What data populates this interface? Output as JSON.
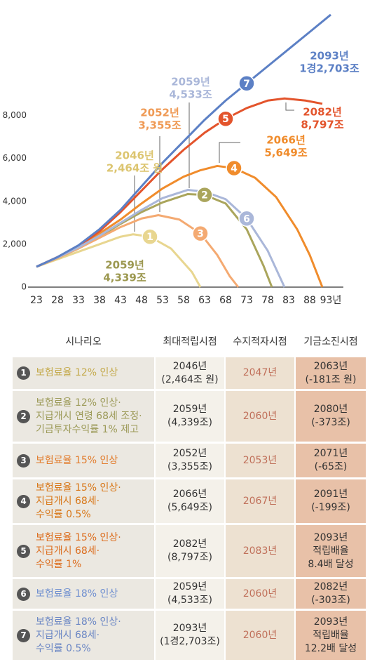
{
  "chart_data": {
    "type": "line",
    "xlim": [
      2023,
      2093
    ],
    "ylim": [
      0,
      12800
    ],
    "xticks": [
      {
        "value": 2023,
        "label": "23"
      },
      {
        "value": 2028,
        "label": "28"
      },
      {
        "value": 2033,
        "label": "33"
      },
      {
        "value": 2038,
        "label": "38"
      },
      {
        "value": 2043,
        "label": "43"
      },
      {
        "value": 2048,
        "label": "48"
      },
      {
        "value": 2053,
        "label": "53"
      },
      {
        "value": 2058,
        "label": "58"
      },
      {
        "value": 2063,
        "label": "63"
      },
      {
        "value": 2068,
        "label": "68"
      },
      {
        "value": 2073,
        "label": "73"
      },
      {
        "value": 2078,
        "label": "78"
      },
      {
        "value": 2083,
        "label": "83"
      },
      {
        "value": 2088,
        "label": "88"
      },
      {
        "value": 2093,
        "label": "93년"
      }
    ],
    "yticks": [
      0,
      {
        "value": 2000,
        "label": "2,000"
      },
      {
        "value": 4000,
        "label": "4,000"
      },
      {
        "value": 6000,
        "label": "6,000"
      },
      {
        "value": 8000,
        "label": "8,000"
      }
    ],
    "grid": false,
    "series": [
      {
        "name": "1",
        "color": "#e8d690",
        "x": [
          2023,
          2028,
          2033,
          2038,
          2043,
          2046,
          2050,
          2055,
          2060,
          2062
        ],
        "values": [
          950,
          1300,
          1650,
          2000,
          2350,
          2464,
          2350,
          1800,
          700,
          0
        ]
      },
      {
        "name": "2",
        "color": "#aaa55c",
        "x": [
          2023,
          2028,
          2033,
          2038,
          2043,
          2048,
          2053,
          2059,
          2063,
          2068,
          2073,
          2077,
          2079
        ],
        "values": [
          950,
          1350,
          1800,
          2350,
          2950,
          3500,
          3950,
          4339,
          4300,
          3900,
          2700,
          1000,
          0
        ]
      },
      {
        "name": "3",
        "color": "#f4aa72",
        "x": [
          2023,
          2028,
          2033,
          2038,
          2043,
          2048,
          2052,
          2057,
          2062,
          2066,
          2069,
          2071
        ],
        "values": [
          950,
          1350,
          1800,
          2300,
          2800,
          3200,
          3355,
          3150,
          2500,
          1500,
          500,
          0
        ]
      },
      {
        "name": "4",
        "color": "#f08c2c",
        "x": [
          2023,
          2028,
          2033,
          2038,
          2043,
          2048,
          2053,
          2058,
          2062,
          2066,
          2070,
          2075,
          2080,
          2085,
          2088,
          2091
        ],
        "values": [
          950,
          1380,
          1900,
          2500,
          3150,
          3900,
          4600,
          5150,
          5450,
          5649,
          5550,
          5100,
          4200,
          2700,
          1500,
          0
        ]
      },
      {
        "name": "5",
        "color": "#e3542c",
        "x": [
          2023,
          2028,
          2033,
          2038,
          2043,
          2048,
          2053,
          2058,
          2063,
          2068,
          2073,
          2078,
          2082,
          2087,
          2091
        ],
        "values": [
          950,
          1400,
          1900,
          2600,
          3500,
          4500,
          5500,
          6400,
          7200,
          7850,
          8350,
          8700,
          8797,
          8700,
          8550
        ]
      },
      {
        "name": "6",
        "color": "#aab7d9",
        "x": [
          2023,
          2028,
          2033,
          2038,
          2043,
          2048,
          2053,
          2059,
          2063,
          2068,
          2073,
          2078,
          2082
        ],
        "values": [
          950,
          1380,
          1850,
          2400,
          3000,
          3600,
          4150,
          4533,
          4450,
          4100,
          3200,
          1700,
          0
        ]
      },
      {
        "name": "7",
        "color": "#5c80c5",
        "x": [
          2023,
          2028,
          2033,
          2038,
          2043,
          2048,
          2053,
          2058,
          2063,
          2068,
          2073,
          2078,
          2083,
          2088,
          2093
        ],
        "values": [
          950,
          1400,
          1950,
          2700,
          3600,
          4700,
          5800,
          6800,
          7800,
          8700,
          9500,
          10300,
          11100,
          11900,
          12703
        ]
      }
    ],
    "annotations": [
      {
        "lines": [
          "2093년",
          "1경2,703조"
        ],
        "color": "#5c80c5"
      },
      {
        "lines": [
          "2059년",
          "4,533조"
        ],
        "color": "#aab7d9"
      },
      {
        "lines": [
          "2052년",
          "3,355조"
        ],
        "color": "#ef9a55"
      },
      {
        "lines": [
          "2082년",
          "8,797조"
        ],
        "color": "#e3542c"
      },
      {
        "lines": [
          "2046년",
          "2,464조 원"
        ],
        "color": "#dcc570"
      },
      {
        "lines": [
          "2066년",
          "5,649조"
        ],
        "color": "#f08c2c"
      },
      {
        "lines": [
          "2059년",
          "4,339조"
        ],
        "color": "#9c9850"
      }
    ]
  },
  "table": {
    "header": [
      "시나리오",
      "최대적립시점",
      "수지적자시점",
      "기금소진시점"
    ],
    "rows": [
      {
        "num": "1",
        "scenario": [
          "보험료율 12% 인상"
        ],
        "color": "#c4aa4c",
        "peak": [
          "2046년",
          "(2,464조 원)"
        ],
        "deficit": "2047년",
        "depletion": [
          "2063년",
          "(-181조 원)"
        ]
      },
      {
        "num": "2",
        "scenario": [
          "보험료율 12% 인상·",
          "지급개시 연령 68세 조정·",
          "기금투자수익률 1% 제고"
        ],
        "color": "#9c9a58",
        "peak": [
          "2059년",
          "(4,339조)"
        ],
        "deficit": "2060년",
        "depletion": [
          "2080년",
          "(-373조)"
        ]
      },
      {
        "num": "3",
        "scenario": [
          "보험료율 15% 인상"
        ],
        "color": "#e27c2c",
        "peak": [
          "2052년",
          "(3,355조)"
        ],
        "deficit": "2053년",
        "depletion": [
          "2071년",
          "(-65조)"
        ]
      },
      {
        "num": "4",
        "scenario": [
          "보험료율 15% 인상·",
          "지급개시 68세·",
          "수익률 0.5%"
        ],
        "color": "#d87616",
        "peak": [
          "2066년",
          "(5,649조)"
        ],
        "deficit": "2067년",
        "depletion": [
          "2091년",
          "(-199조)"
        ]
      },
      {
        "num": "5",
        "scenario": [
          "보험료율 15% 인상·",
          "지급개시 68세·",
          "수익률 1%"
        ],
        "color": "#dc6c1c",
        "peak": [
          "2082년",
          "(8,797조)"
        ],
        "deficit": "2083년",
        "depletion": [
          "2093년",
          "적립배율",
          "8.4배 달성"
        ]
      },
      {
        "num": "6",
        "scenario": [
          "보험료율 18% 인상"
        ],
        "color": "#6f8fd0",
        "peak": [
          "2059년",
          "(4,533조)"
        ],
        "deficit": "2060년",
        "depletion": [
          "2082년",
          "(-303조)"
        ]
      },
      {
        "num": "7",
        "scenario": [
          "보험료율 18% 인상·",
          "지급개시 68세·",
          "수익률 0.5%"
        ],
        "color": "#6a86c4",
        "peak": [
          "2093년",
          "(1경2,703조)"
        ],
        "deficit": "2060년",
        "depletion": [
          "2093년",
          "적립배율",
          "12.2배 달성"
        ]
      }
    ]
  }
}
